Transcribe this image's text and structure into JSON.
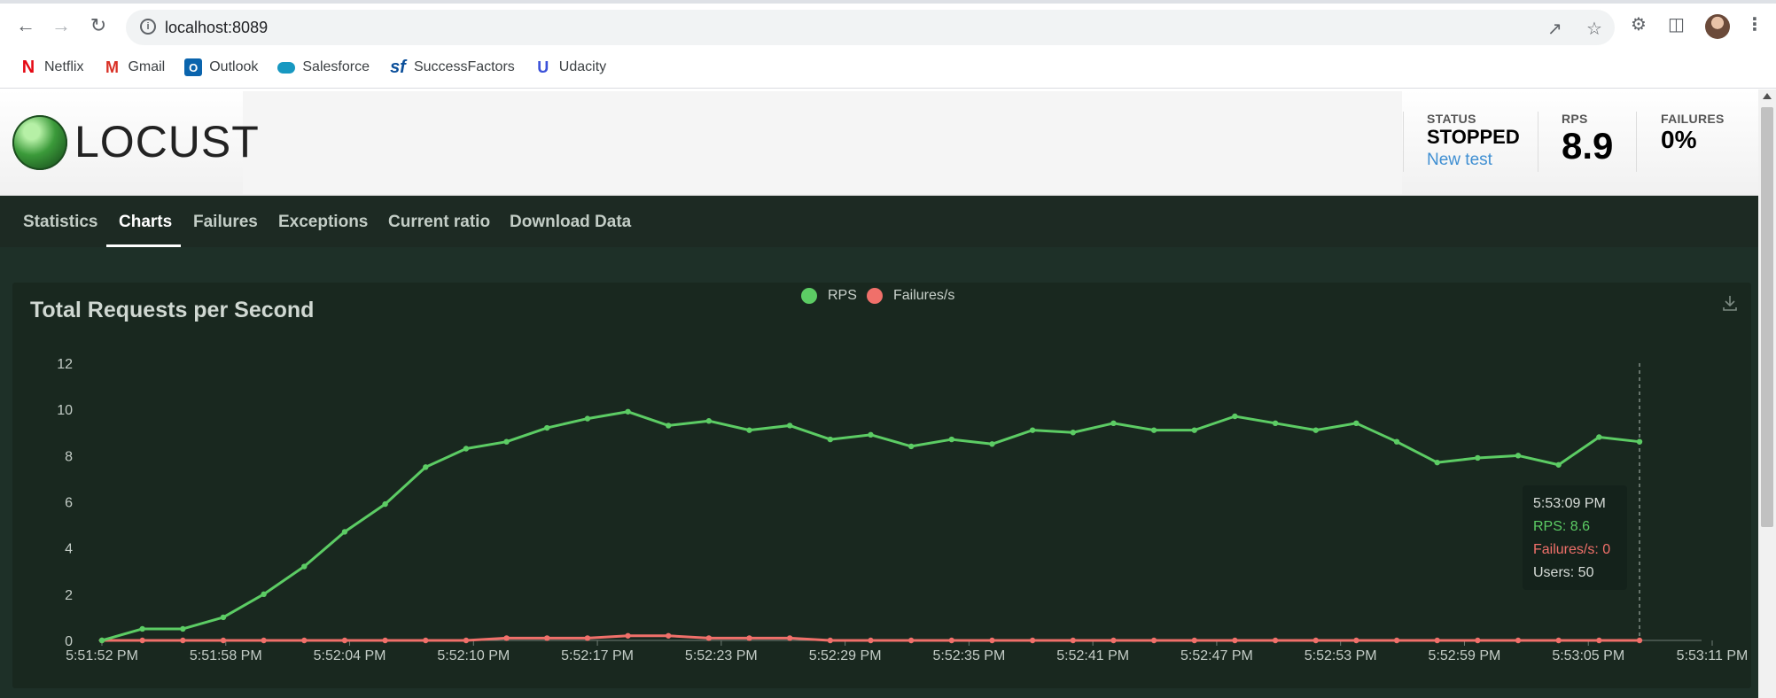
{
  "browser": {
    "url": "localhost:8089",
    "bookmarks": [
      {
        "label": "Netflix",
        "icon": "netflix-icon",
        "color": "#e50914"
      },
      {
        "label": "Gmail",
        "icon": "gmail-icon",
        "color": "#d93025"
      },
      {
        "label": "Outlook",
        "icon": "outlook-icon",
        "color": "#0a64ad"
      },
      {
        "label": "Salesforce",
        "icon": "salesforce-icon",
        "color": "#1798c1"
      },
      {
        "label": "SuccessFactors",
        "icon": "successfactors-icon",
        "color": "#0b4f9a"
      },
      {
        "label": "Udacity",
        "icon": "udacity-icon",
        "color": "#3c52d9"
      }
    ]
  },
  "header": {
    "logo_text": "LOCUST",
    "status_label": "STATUS",
    "status_value": "STOPPED",
    "new_test_link": "New test",
    "rps_label": "RPS",
    "rps_value": "8.9",
    "failures_label": "FAILURES",
    "failures_value": "0%"
  },
  "tabs": [
    {
      "label": "Statistics",
      "active": false
    },
    {
      "label": "Charts",
      "active": true
    },
    {
      "label": "Failures",
      "active": false
    },
    {
      "label": "Exceptions",
      "active": false
    },
    {
      "label": "Current ratio",
      "active": false
    },
    {
      "label": "Download Data",
      "active": false
    }
  ],
  "tooltip": {
    "time": "5:53:09 PM",
    "rps": "RPS: 8.6",
    "failures": "Failures/s: 0",
    "users": "Users: 50"
  },
  "colors": {
    "rps": "#5ccc64",
    "failures": "#f0706a"
  },
  "chart_data": {
    "type": "line",
    "title": "Total Requests per Second",
    "xlabel": "",
    "ylabel": "",
    "ylim": [
      0,
      12
    ],
    "yticks": [
      0,
      2,
      4,
      6,
      8,
      10,
      12
    ],
    "xticks": [
      "5:51:52 PM",
      "5:51:58 PM",
      "5:52:04 PM",
      "5:52:10 PM",
      "5:52:17 PM",
      "5:52:23 PM",
      "5:52:29 PM",
      "5:52:35 PM",
      "5:52:41 PM",
      "5:52:47 PM",
      "5:52:53 PM",
      "5:52:59 PM",
      "5:53:05 PM",
      "5:53:11 PM"
    ],
    "legend": "top-center",
    "grid": false,
    "series": [
      {
        "name": "RPS",
        "values": [
          0,
          0.5,
          0.5,
          1.0,
          2.0,
          3.2,
          4.7,
          5.9,
          7.5,
          8.3,
          8.6,
          9.2,
          9.6,
          9.9,
          9.3,
          9.5,
          9.1,
          9.3,
          8.7,
          8.9,
          8.4,
          8.7,
          8.5,
          9.1,
          9.0,
          9.4,
          9.1,
          9.1,
          9.7,
          9.4,
          9.1,
          9.4,
          8.6,
          7.7,
          7.9,
          8.0,
          7.6,
          8.8,
          8.6
        ]
      },
      {
        "name": "Failures/s",
        "values": [
          0,
          0,
          0,
          0,
          0,
          0,
          0,
          0,
          0,
          0,
          0.1,
          0.1,
          0.1,
          0.2,
          0.2,
          0.1,
          0.1,
          0.1,
          0,
          0,
          0,
          0,
          0,
          0,
          0,
          0,
          0,
          0,
          0,
          0,
          0,
          0,
          0,
          0,
          0,
          0,
          0,
          0,
          0
        ]
      }
    ]
  }
}
